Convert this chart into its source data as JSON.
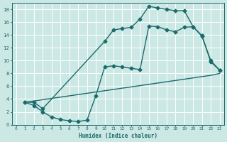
{
  "xlabel": "Humidex (Indice chaleur)",
  "bg_color": "#cce8e4",
  "line_color": "#1a6b6b",
  "grid_color": "#ffffff",
  "xlim": [
    -0.5,
    23.5
  ],
  "ylim": [
    0,
    19
  ],
  "xticks": [
    0,
    1,
    2,
    3,
    4,
    5,
    6,
    7,
    8,
    9,
    10,
    11,
    12,
    13,
    14,
    15,
    16,
    17,
    18,
    19,
    20,
    21,
    22,
    23
  ],
  "yticks": [
    0,
    2,
    4,
    6,
    8,
    10,
    12,
    14,
    16,
    18
  ],
  "line1_x": [
    1,
    2,
    3,
    10,
    11,
    12,
    13,
    14,
    15,
    16,
    17,
    18,
    19,
    20,
    21,
    22,
    23
  ],
  "line1_y": [
    3.5,
    3.5,
    2.5,
    13.0,
    14.8,
    15.0,
    15.2,
    16.5,
    18.5,
    18.2,
    18.0,
    17.8,
    17.8,
    15.3,
    13.8,
    10.0,
    8.5
  ],
  "line2_x": [
    1,
    2,
    3,
    4,
    5,
    6,
    7,
    8,
    9,
    10,
    11,
    12,
    13,
    14,
    15,
    16,
    17,
    18,
    19,
    20,
    21,
    22,
    23
  ],
  "line2_y": [
    3.5,
    3.0,
    2.0,
    1.2,
    0.8,
    0.6,
    0.5,
    0.7,
    4.5,
    9.0,
    9.2,
    9.0,
    8.8,
    8.6,
    15.4,
    15.3,
    14.8,
    14.5,
    15.2,
    15.3,
    13.9,
    9.8,
    8.5
  ],
  "line3_x": [
    1,
    2,
    3,
    4,
    5,
    6,
    7,
    8,
    9,
    10,
    11,
    12,
    13,
    14,
    15,
    16,
    17,
    18,
    19,
    20,
    21,
    22,
    23
  ],
  "line3_y": [
    3.5,
    3.7,
    3.9,
    4.1,
    4.3,
    4.5,
    4.7,
    4.9,
    5.1,
    5.3,
    5.5,
    5.7,
    5.9,
    6.1,
    6.3,
    6.5,
    6.7,
    6.9,
    7.1,
    7.3,
    7.5,
    7.7,
    8.0
  ],
  "marker": "D",
  "markersize": 2.5,
  "linewidth": 1.0
}
